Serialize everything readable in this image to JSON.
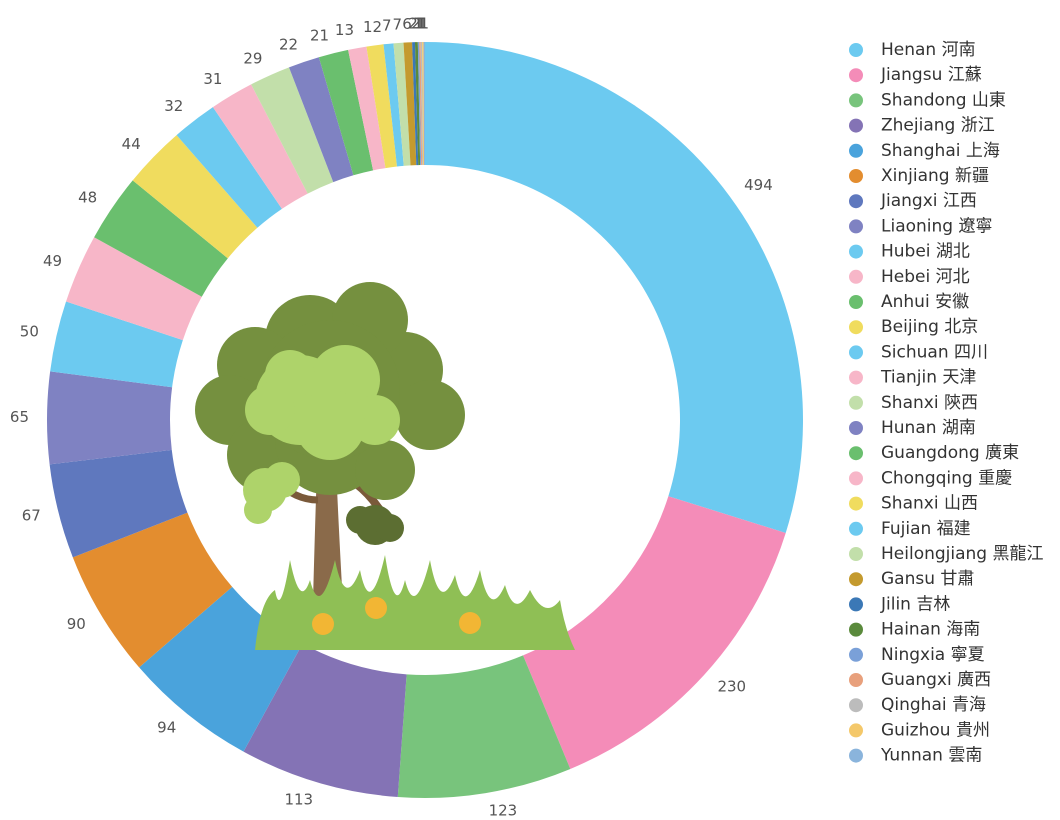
{
  "chart_data": {
    "type": "donut",
    "categories": [
      "Henan 河南",
      "Jiangsu 江蘇",
      "Shandong 山東",
      "Zhejiang 浙江",
      "Shanghai 上海",
      "Xinjiang 新疆",
      "Jiangxi 江西",
      "Liaoning 遼寧",
      "Hubei 湖北",
      "Hebei 河北",
      "Anhui 安徽",
      "Beijing 北京",
      "Sichuan 四川",
      "Tianjin 天津",
      "Shanxi 陝西",
      "Hunan 湖南",
      "Guangdong 廣東",
      "Chongqing 重慶",
      "Shanxi 山西",
      "Fujian 福建",
      "Heilongjiang 黑龍江",
      "Gansu 甘肅",
      "Jilin 吉林",
      "Hainan 海南",
      "Ningxia 寧夏",
      "Guangxi 廣西",
      "Qinghai 青海",
      "Guizhou 貴州",
      "Yunnan 雲南"
    ],
    "values": [
      494,
      230,
      123,
      113,
      94,
      90,
      67,
      65,
      50,
      49,
      48,
      44,
      32,
      31,
      29,
      22,
      21,
      13,
      12,
      7,
      7,
      6,
      2,
      2,
      1,
      1,
      1,
      1,
      1
    ],
    "colors": [
      "#6ccaf0",
      "#f48cb8",
      "#78c47c",
      "#8473b5",
      "#4aa3dc",
      "#e38d2f",
      "#5f78be",
      "#7f82c2",
      "#6ccaf0",
      "#f7b6c8",
      "#6abf6e",
      "#f0dc5e",
      "#6ccaf0",
      "#f7b6c8",
      "#c2dfaa",
      "#7f82c2",
      "#6abf6e",
      "#f7b6c8",
      "#f0dc5e",
      "#6ccaf0",
      "#c2dfaa",
      "#c49a2e",
      "#3b78b6",
      "#5a8a3c",
      "#7aa0d8",
      "#e8a07c",
      "#bcbcbc",
      "#f4c86a",
      "#8ab4dc"
    ],
    "legend": "right"
  }
}
